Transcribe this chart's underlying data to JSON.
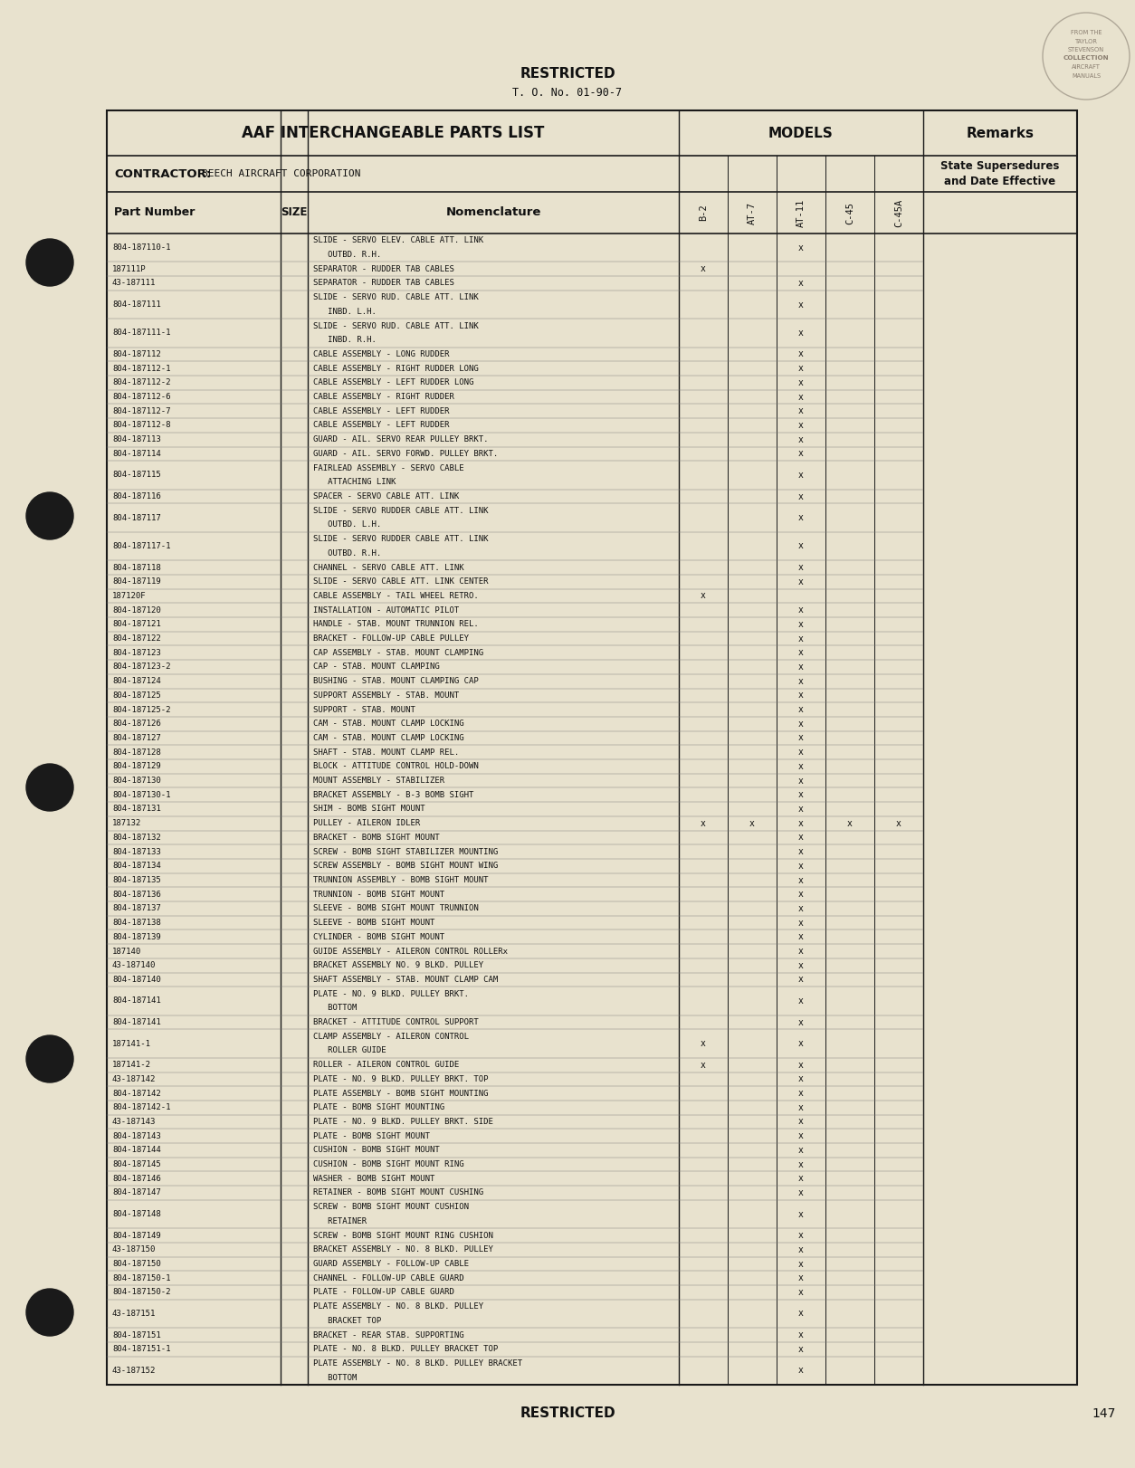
{
  "page_bg": "#e8e2ce",
  "restricted_top": "RESTRICTED",
  "to_number": "T. O. No. 01-90-7",
  "header_title": "AAF INTERCHANGEABLE PARTS LIST",
  "models_header": "MODELS",
  "remarks_header": "Remarks",
  "contractor_label": "CONTRACTOR:",
  "contractor_value": "BEECH AIRCRAFT CORPORATION",
  "col_part": "Part Number",
  "col_size": "SIZE",
  "col_nom": "Nomenclature",
  "col_models": [
    "B-2",
    "AT-7",
    "AT-11",
    "C-45",
    "C-45A"
  ],
  "remarks_sub1": "State Supersedures",
  "remarks_sub2": "and Date Effective",
  "page_number": "147",
  "restricted_bottom": "RESTRICTED",
  "rows": [
    {
      "part": "804-187110-1",
      "nom": "SLIDE - SERVO ELEV. CABLE ATT. LINK\n   OUTBD. R.H.",
      "marks": [
        0,
        0,
        1,
        0,
        0
      ]
    },
    {
      "part": "187111P",
      "nom": "SEPARATOR - RUDDER TAB CABLES",
      "marks": [
        1,
        0,
        0,
        0,
        0
      ]
    },
    {
      "part": "43-187111",
      "nom": "SEPARATOR - RUDDER TAB CABLES",
      "marks": [
        0,
        0,
        1,
        0,
        0
      ]
    },
    {
      "part": "804-187111",
      "nom": "SLIDE - SERVO RUD. CABLE ATT. LINK\n   INBD. L.H.",
      "marks": [
        0,
        0,
        1,
        0,
        0
      ]
    },
    {
      "part": "804-187111-1",
      "nom": "SLIDE - SERVO RUD. CABLE ATT. LINK\n   INBD. R.H.",
      "marks": [
        0,
        0,
        1,
        0,
        0
      ]
    },
    {
      "part": "804-187112",
      "nom": "CABLE ASSEMBLY - LONG RUDDER",
      "marks": [
        0,
        0,
        1,
        0,
        0
      ]
    },
    {
      "part": "804-187112-1",
      "nom": "CABLE ASSEMBLY - RIGHT RUDDER LONG",
      "marks": [
        0,
        0,
        1,
        0,
        0
      ]
    },
    {
      "part": "804-187112-2",
      "nom": "CABLE ASSEMBLY - LEFT RUDDER LONG",
      "marks": [
        0,
        0,
        1,
        0,
        0
      ]
    },
    {
      "part": "804-187112-6",
      "nom": "CABLE ASSEMBLY - RIGHT RUDDER",
      "marks": [
        0,
        0,
        1,
        0,
        0
      ]
    },
    {
      "part": "804-187112-7",
      "nom": "CABLE ASSEMBLY - LEFT RUDDER",
      "marks": [
        0,
        0,
        1,
        0,
        0
      ]
    },
    {
      "part": "804-187112-8",
      "nom": "CABLE ASSEMBLY - LEFT RUDDER",
      "marks": [
        0,
        0,
        1,
        0,
        0
      ]
    },
    {
      "part": "804-187113",
      "nom": "GUARD - AIL. SERVO REAR PULLEY BRKT.",
      "marks": [
        0,
        0,
        1,
        0,
        0
      ]
    },
    {
      "part": "804-187114",
      "nom": "GUARD - AIL. SERVO FORWD. PULLEY BRKT.",
      "marks": [
        0,
        0,
        1,
        0,
        0
      ]
    },
    {
      "part": "804-187115",
      "nom": "FAIRLEAD ASSEMBLY - SERVO CABLE\n   ATTACHING LINK",
      "marks": [
        0,
        0,
        1,
        0,
        0
      ]
    },
    {
      "part": "804-187116",
      "nom": "SPACER - SERVO CABLE ATT. LINK",
      "marks": [
        0,
        0,
        1,
        0,
        0
      ]
    },
    {
      "part": "804-187117",
      "nom": "SLIDE - SERVO RUDDER CABLE ATT. LINK\n   OUTBD. L.H.",
      "marks": [
        0,
        0,
        1,
        0,
        0
      ]
    },
    {
      "part": "804-187117-1",
      "nom": "SLIDE - SERVO RUDDER CABLE ATT. LINK\n   OUTBD. R.H.",
      "marks": [
        0,
        0,
        1,
        0,
        0
      ]
    },
    {
      "part": "804-187118",
      "nom": "CHANNEL - SERVO CABLE ATT. LINK",
      "marks": [
        0,
        0,
        1,
        0,
        0
      ]
    },
    {
      "part": "804-187119",
      "nom": "SLIDE - SERVO CABLE ATT. LINK CENTER",
      "marks": [
        0,
        0,
        1,
        0,
        0
      ]
    },
    {
      "part": "187120F",
      "nom": "CABLE ASSEMBLY - TAIL WHEEL RETRO.",
      "marks": [
        1,
        0,
        0,
        0,
        0
      ]
    },
    {
      "part": "804-187120",
      "nom": "INSTALLATION - AUTOMATIC PILOT",
      "marks": [
        0,
        0,
        1,
        0,
        0
      ]
    },
    {
      "part": "804-187121",
      "nom": "HANDLE - STAB. MOUNT TRUNNION REL.",
      "marks": [
        0,
        0,
        1,
        0,
        0
      ]
    },
    {
      "part": "804-187122",
      "nom": "BRACKET - FOLLOW-UP CABLE PULLEY",
      "marks": [
        0,
        0,
        1,
        0,
        0
      ]
    },
    {
      "part": "804-187123",
      "nom": "CAP ASSEMBLY - STAB. MOUNT CLAMPING",
      "marks": [
        0,
        0,
        1,
        0,
        0
      ]
    },
    {
      "part": "804-187123-2",
      "nom": "CAP - STAB. MOUNT CLAMPING",
      "marks": [
        0,
        0,
        1,
        0,
        0
      ]
    },
    {
      "part": "804-187124",
      "nom": "BUSHING - STAB. MOUNT CLAMPING CAP",
      "marks": [
        0,
        0,
        1,
        0,
        0
      ]
    },
    {
      "part": "804-187125",
      "nom": "SUPPORT ASSEMBLY - STAB. MOUNT",
      "marks": [
        0,
        0,
        1,
        0,
        0
      ]
    },
    {
      "part": "804-187125-2",
      "nom": "SUPPORT - STAB. MOUNT",
      "marks": [
        0,
        0,
        1,
        0,
        0
      ]
    },
    {
      "part": "804-187126",
      "nom": "CAM - STAB. MOUNT CLAMP LOCKING",
      "marks": [
        0,
        0,
        1,
        0,
        0
      ]
    },
    {
      "part": "804-187127",
      "nom": "CAM - STAB. MOUNT CLAMP LOCKING",
      "marks": [
        0,
        0,
        1,
        0,
        0
      ]
    },
    {
      "part": "804-187128",
      "nom": "SHAFT - STAB. MOUNT CLAMP REL.",
      "marks": [
        0,
        0,
        1,
        0,
        0
      ]
    },
    {
      "part": "804-187129",
      "nom": "BLOCK - ATTITUDE CONTROL HOLD-DOWN",
      "marks": [
        0,
        0,
        1,
        0,
        0
      ]
    },
    {
      "part": "804-187130",
      "nom": "MOUNT ASSEMBLY - STABILIZER",
      "marks": [
        0,
        0,
        1,
        0,
        0
      ]
    },
    {
      "part": "804-187130-1",
      "nom": "BRACKET ASSEMBLY - B-3 BOMB SIGHT",
      "marks": [
        0,
        0,
        1,
        0,
        0
      ]
    },
    {
      "part": "804-187131",
      "nom": "SHIM - BOMB SIGHT MOUNT",
      "marks": [
        0,
        0,
        1,
        0,
        0
      ]
    },
    {
      "part": "187132",
      "nom": "PULLEY - AILERON IDLER",
      "marks": [
        1,
        1,
        1,
        1,
        1
      ]
    },
    {
      "part": "804-187132",
      "nom": "BRACKET - BOMB SIGHT MOUNT",
      "marks": [
        0,
        0,
        1,
        0,
        0
      ]
    },
    {
      "part": "804-187133",
      "nom": "SCREW - BOMB SIGHT STABILIZER MOUNTING",
      "marks": [
        0,
        0,
        1,
        0,
        0
      ]
    },
    {
      "part": "804-187134",
      "nom": "SCREW ASSEMBLY - BOMB SIGHT MOUNT WING",
      "marks": [
        0,
        0,
        1,
        0,
        0
      ]
    },
    {
      "part": "804-187135",
      "nom": "TRUNNION ASSEMBLY - BOMB SIGHT MOUNT",
      "marks": [
        0,
        0,
        1,
        0,
        0
      ]
    },
    {
      "part": "804-187136",
      "nom": "TRUNNION - BOMB SIGHT MOUNT",
      "marks": [
        0,
        0,
        1,
        0,
        0
      ]
    },
    {
      "part": "804-187137",
      "nom": "SLEEVE - BOMB SIGHT MOUNT TRUNNION",
      "marks": [
        0,
        0,
        1,
        0,
        0
      ]
    },
    {
      "part": "804-187138",
      "nom": "SLEEVE - BOMB SIGHT MOUNT",
      "marks": [
        0,
        0,
        1,
        0,
        0
      ]
    },
    {
      "part": "804-187139",
      "nom": "CYLINDER - BOMB SIGHT MOUNT",
      "marks": [
        0,
        0,
        1,
        0,
        0
      ]
    },
    {
      "part": "187140",
      "nom": "GUIDE ASSEMBLY - AILERON CONTROL ROLLERx",
      "marks": [
        0,
        0,
        1,
        0,
        0
      ]
    },
    {
      "part": "43-187140",
      "nom": "BRACKET ASSEMBLY NO. 9 BLKD. PULLEY",
      "marks": [
        0,
        0,
        1,
        0,
        0
      ]
    },
    {
      "part": "804-187140",
      "nom": "SHAFT ASSEMBLY - STAB. MOUNT CLAMP CAM",
      "marks": [
        0,
        0,
        1,
        0,
        0
      ]
    },
    {
      "part": "804-187141",
      "nom": "PLATE - NO. 9 BLKD. PULLEY BRKT.\n   BOTTOM",
      "marks": [
        0,
        0,
        1,
        0,
        0
      ]
    },
    {
      "part": "804-187141",
      "nom": "BRACKET - ATTITUDE CONTROL SUPPORT",
      "marks": [
        0,
        0,
        1,
        0,
        0
      ]
    },
    {
      "part": "187141-1",
      "nom": "CLAMP ASSEMBLY - AILERON CONTROL\n   ROLLER GUIDE",
      "marks": [
        1,
        0,
        1,
        0,
        0
      ]
    },
    {
      "part": "187141-2",
      "nom": "ROLLER - AILERON CONTROL GUIDE",
      "marks": [
        1,
        0,
        1,
        0,
        0
      ]
    },
    {
      "part": "43-187142",
      "nom": "PLATE - NO. 9 BLKD. PULLEY BRKT. TOP",
      "marks": [
        0,
        0,
        1,
        0,
        0
      ]
    },
    {
      "part": "804-187142",
      "nom": "PLATE ASSEMBLY - BOMB SIGHT MOUNTING",
      "marks": [
        0,
        0,
        1,
        0,
        0
      ]
    },
    {
      "part": "804-187142-1",
      "nom": "PLATE - BOMB SIGHT MOUNTING",
      "marks": [
        0,
        0,
        1,
        0,
        0
      ]
    },
    {
      "part": "43-187143",
      "nom": "PLATE - NO. 9 BLKD. PULLEY BRKT. SIDE",
      "marks": [
        0,
        0,
        1,
        0,
        0
      ]
    },
    {
      "part": "804-187143",
      "nom": "PLATE - BOMB SIGHT MOUNT",
      "marks": [
        0,
        0,
        1,
        0,
        0
      ]
    },
    {
      "part": "804-187144",
      "nom": "CUSHION - BOMB SIGHT MOUNT",
      "marks": [
        0,
        0,
        1,
        0,
        0
      ]
    },
    {
      "part": "804-187145",
      "nom": "CUSHION - BOMB SIGHT MOUNT RING",
      "marks": [
        0,
        0,
        1,
        0,
        0
      ]
    },
    {
      "part": "804-187146",
      "nom": "WASHER - BOMB SIGHT MOUNT",
      "marks": [
        0,
        0,
        1,
        0,
        0
      ]
    },
    {
      "part": "804-187147",
      "nom": "RETAINER - BOMB SIGHT MOUNT CUSHING",
      "marks": [
        0,
        0,
        1,
        0,
        0
      ]
    },
    {
      "part": "804-187148",
      "nom": "SCREW - BOMB SIGHT MOUNT CUSHION\n   RETAINER",
      "marks": [
        0,
        0,
        1,
        0,
        0
      ]
    },
    {
      "part": "804-187149",
      "nom": "SCREW - BOMB SIGHT MOUNT RING CUSHION",
      "marks": [
        0,
        0,
        1,
        0,
        0
      ]
    },
    {
      "part": "43-187150",
      "nom": "BRACKET ASSEMBLY - NO. 8 BLKD. PULLEY",
      "marks": [
        0,
        0,
        1,
        0,
        0
      ]
    },
    {
      "part": "804-187150",
      "nom": "GUARD ASSEMBLY - FOLLOW-UP CABLE",
      "marks": [
        0,
        0,
        1,
        0,
        0
      ]
    },
    {
      "part": "804-187150-1",
      "nom": "CHANNEL - FOLLOW-UP CABLE GUARD",
      "marks": [
        0,
        0,
        1,
        0,
        0
      ]
    },
    {
      "part": "804-187150-2",
      "nom": "PLATE - FOLLOW-UP CABLE GUARD",
      "marks": [
        0,
        0,
        1,
        0,
        0
      ]
    },
    {
      "part": "43-187151",
      "nom": "PLATE ASSEMBLY - NO. 8 BLKD. PULLEY\n   BRACKET TOP",
      "marks": [
        0,
        0,
        1,
        0,
        0
      ]
    },
    {
      "part": "804-187151",
      "nom": "BRACKET - REAR STAB. SUPPORTING",
      "marks": [
        0,
        0,
        1,
        0,
        0
      ]
    },
    {
      "part": "804-187151-1",
      "nom": "PLATE - NO. 8 BLKD. PULLEY BRACKET TOP",
      "marks": [
        0,
        0,
        1,
        0,
        0
      ]
    },
    {
      "part": "43-187152",
      "nom": "PLATE ASSEMBLY - NO. 8 BLKD. PULLEY BRACKET\n   BOTTOM",
      "marks": [
        0,
        0,
        1,
        0,
        0
      ]
    }
  ]
}
